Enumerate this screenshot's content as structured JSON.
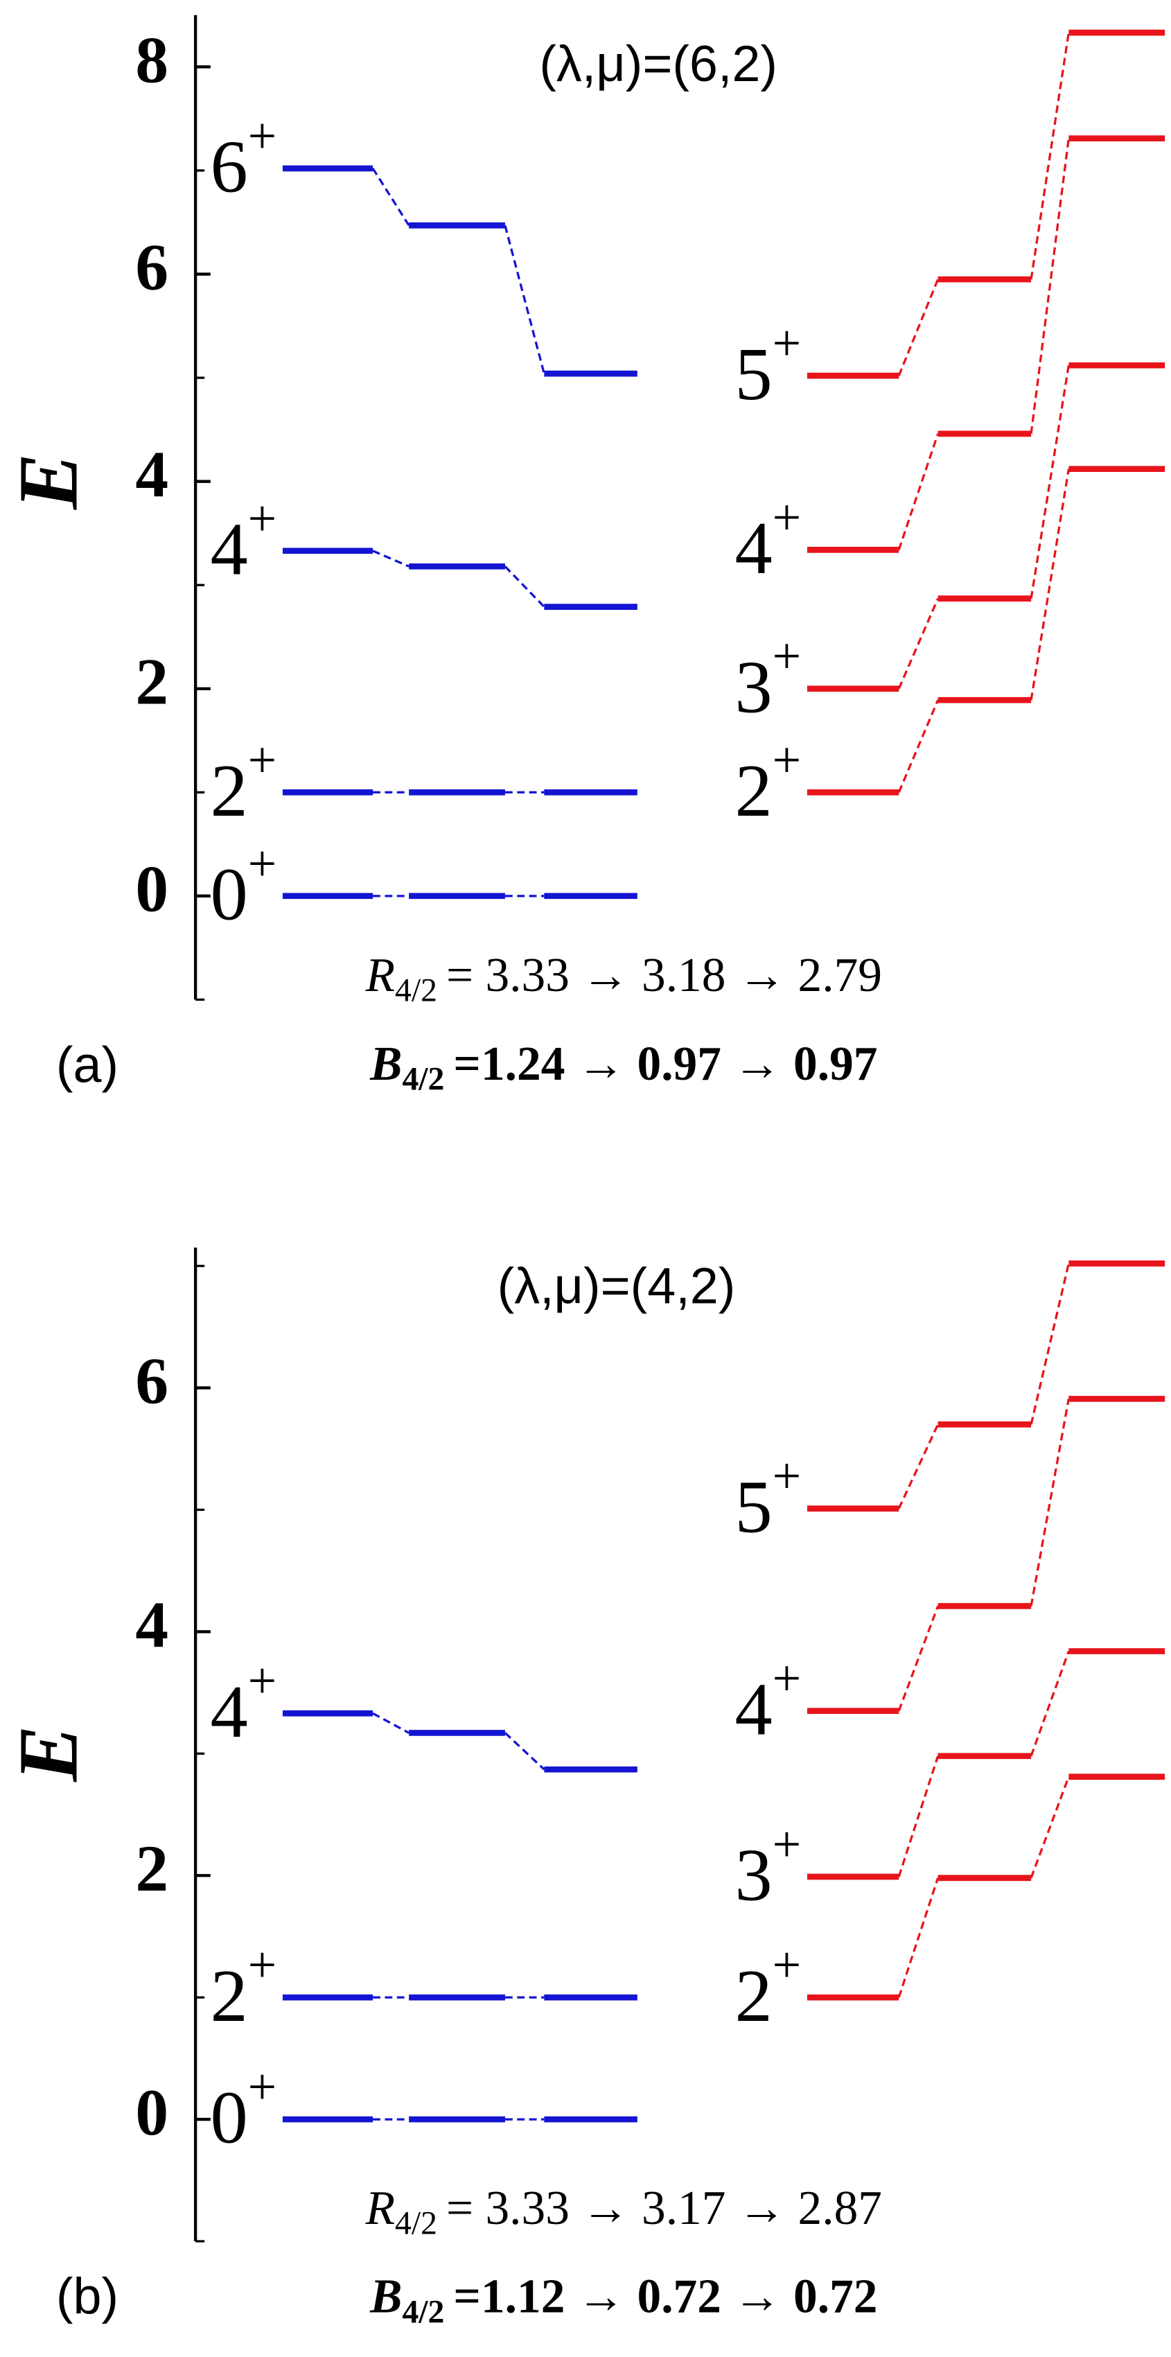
{
  "chart_data": [
    {
      "type": "level",
      "title": "(λ,μ)=(6,2)",
      "panel_label": "(a)",
      "ylabel": "E",
      "ylim": [
        -1,
        8.5
      ],
      "yticks": [
        0,
        2,
        4,
        6,
        8
      ],
      "minor_yticks": [
        -1,
        1,
        3,
        5,
        7
      ],
      "groups": [
        {
          "color": "#1414d2",
          "levels": [
            {
              "spin": "0",
              "parity": "+",
              "values": [
                0,
                0,
                0
              ]
            },
            {
              "spin": "2",
              "parity": "+",
              "values": [
                1,
                1,
                1
              ]
            },
            {
              "spin": "4",
              "parity": "+",
              "values": [
                3.33,
                3.18,
                2.79
              ]
            },
            {
              "spin": "6",
              "parity": "+",
              "values": [
                7.02,
                6.47,
                5.04
              ]
            }
          ]
        },
        {
          "color": "#e8141c",
          "levels": [
            {
              "spin": "2",
              "parity": "+",
              "values": [
                1.0,
                1.89,
                4.12
              ]
            },
            {
              "spin": "3",
              "parity": "+",
              "values": [
                2.0,
                2.87,
                5.12
              ]
            },
            {
              "spin": "4",
              "parity": "+",
              "values": [
                3.34,
                4.46,
                7.31
              ]
            },
            {
              "spin": "5",
              "parity": "+",
              "values": [
                5.02,
                5.95,
                8.33
              ]
            }
          ]
        }
      ],
      "ratios": [
        {
          "symbol": "R",
          "subscript": "4/2",
          "equals": "=",
          "values": [
            3.33,
            3.18,
            2.79
          ]
        },
        {
          "symbol": "B",
          "subscript": "4/2",
          "equals": "=",
          "values": [
            1.24,
            0.97,
            0.97
          ]
        }
      ],
      "arrow": "→"
    },
    {
      "type": "level",
      "title": "(λ,μ)=(4,2)",
      "panel_label": "(b)",
      "ylabel": "E",
      "ylim": [
        -1,
        7.15
      ],
      "yticks": [
        0,
        2,
        4,
        6
      ],
      "minor_yticks": [
        -1,
        1,
        3,
        5,
        7
      ],
      "groups": [
        {
          "color": "#1414d2",
          "levels": [
            {
              "spin": "0",
              "parity": "+",
              "values": [
                0,
                0,
                0
              ]
            },
            {
              "spin": "2",
              "parity": "+",
              "values": [
                1,
                1,
                1
              ]
            },
            {
              "spin": "4",
              "parity": "+",
              "values": [
                3.33,
                3.17,
                2.87
              ]
            }
          ]
        },
        {
          "color": "#e8141c",
          "levels": [
            {
              "spin": "2",
              "parity": "+",
              "values": [
                1.0,
                1.98,
                2.81
              ]
            },
            {
              "spin": "3",
              "parity": "+",
              "values": [
                1.99,
                2.98,
                3.84
              ]
            },
            {
              "spin": "4",
              "parity": "+",
              "values": [
                3.35,
                4.21,
                5.91
              ]
            },
            {
              "spin": "5",
              "parity": "+",
              "values": [
                5.01,
                5.7,
                7.02
              ]
            }
          ]
        }
      ],
      "ratios": [
        {
          "symbol": "R",
          "subscript": "4/2",
          "equals": "=",
          "values": [
            3.33,
            3.17,
            2.87
          ]
        },
        {
          "symbol": "B",
          "subscript": "4/2",
          "equals": "=",
          "values": [
            1.12,
            0.72,
            0.72
          ]
        }
      ],
      "arrow": "→"
    }
  ]
}
